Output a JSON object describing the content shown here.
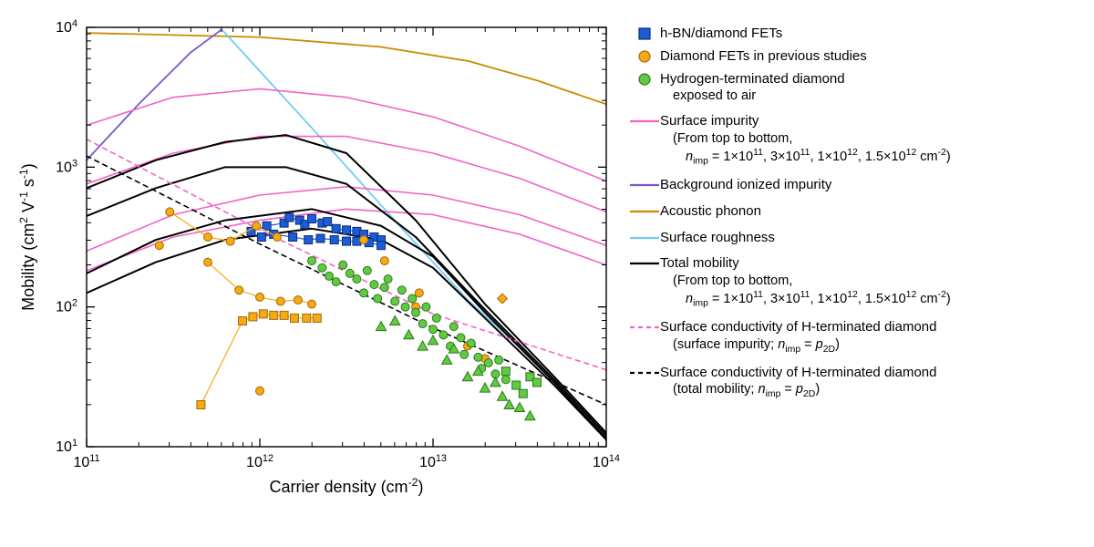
{
  "chart": {
    "type": "scatter+line",
    "background_color": "#ffffff",
    "plot_area_border_color": "#000000",
    "plot_area_border_width": 1.4,
    "tick_color": "#000000",
    "font_color": "#000000",
    "label_fontsize": 18,
    "tick_fontsize": 16,
    "x_axis": {
      "label_html": "Carrier density (cm<sup>-2</sup>)",
      "scale": "log",
      "min_exp": 11,
      "max_exp": 14,
      "tick_exps": [
        11,
        12,
        13,
        14
      ],
      "minor_ticks": true,
      "inward_ticks": true
    },
    "y_axis": {
      "label_html": "Mobility (cm<sup>2</sup> V<sup>-1</sup> s<sup>-1</sup>)",
      "scale": "log",
      "min_exp": 1,
      "max_exp": 4,
      "tick_exps": [
        1,
        2,
        3,
        4
      ],
      "minor_ticks": true,
      "inward_ticks": true
    },
    "lines": {
      "acoustic_phonon": {
        "color": "#c98b00",
        "width": 1.8,
        "points": [
          [
            11,
            3.96
          ],
          [
            12,
            3.93
          ],
          [
            12.7,
            3.86
          ],
          [
            13.2,
            3.76
          ],
          [
            13.6,
            3.62
          ],
          [
            14,
            3.45
          ]
        ]
      },
      "background_ionized": {
        "color": "#7b57c6",
        "width": 1.8,
        "points": [
          [
            11,
            3.05
          ],
          [
            11.3,
            3.45
          ],
          [
            11.6,
            3.82
          ],
          [
            11.78,
            3.985
          ]
        ]
      },
      "surface_roughness": {
        "color": "#6fcdf2",
        "width": 1.8,
        "points": [
          [
            11.78,
            3.985
          ],
          [
            12.3,
            3.28
          ],
          [
            12.8,
            2.59
          ],
          [
            13.2,
            2.05
          ],
          [
            13.6,
            1.6
          ],
          [
            14,
            1.09
          ]
        ]
      },
      "surface_impurity": [
        {
          "color": "#f263c8",
          "width": 1.6,
          "points": [
            [
              11,
              3.3
            ],
            [
              11.5,
              3.5
            ],
            [
              12,
              3.56
            ],
            [
              12.5,
              3.5
            ],
            [
              13,
              3.36
            ],
            [
              13.5,
              3.15
            ],
            [
              14,
              2.9
            ]
          ]
        },
        {
          "color": "#f263c8",
          "width": 1.6,
          "points": [
            [
              11,
              2.88
            ],
            [
              11.5,
              3.1
            ],
            [
              12,
              3.22
            ],
            [
              12.5,
              3.22
            ],
            [
              13,
              3.1
            ],
            [
              13.5,
              2.92
            ],
            [
              14,
              2.68
            ]
          ]
        },
        {
          "color": "#f263c8",
          "width": 1.6,
          "points": [
            [
              11,
              2.4
            ],
            [
              11.5,
              2.66
            ],
            [
              12,
              2.8
            ],
            [
              12.5,
              2.86
            ],
            [
              13,
              2.8
            ],
            [
              13.5,
              2.66
            ],
            [
              14,
              2.44
            ]
          ]
        },
        {
          "color": "#f263c8",
          "width": 1.6,
          "points": [
            [
              11,
              2.26
            ],
            [
              11.5,
              2.5
            ],
            [
              12,
              2.62
            ],
            [
              12.5,
              2.7
            ],
            [
              13,
              2.66
            ],
            [
              13.5,
              2.52
            ],
            [
              14,
              2.3
            ]
          ]
        }
      ],
      "total_mobility": [
        {
          "color": "#000000",
          "width": 2.0,
          "points": [
            [
              11,
              2.85
            ],
            [
              11.4,
              3.05
            ],
            [
              11.8,
              3.18
            ],
            [
              12.15,
              3.23
            ],
            [
              12.5,
              3.1
            ],
            [
              12.9,
              2.62
            ],
            [
              13.3,
              2.02
            ],
            [
              13.7,
              1.5
            ],
            [
              14,
              1.1
            ]
          ]
        },
        {
          "color": "#000000",
          "width": 2.0,
          "points": [
            [
              11,
              2.65
            ],
            [
              11.4,
              2.85
            ],
            [
              11.8,
              3.0
            ],
            [
              12.15,
              3.0
            ],
            [
              12.5,
              2.88
            ],
            [
              12.9,
              2.5
            ],
            [
              13.3,
              1.98
            ],
            [
              13.7,
              1.48
            ],
            [
              14,
              1.08
            ]
          ]
        },
        {
          "color": "#000000",
          "width": 2.0,
          "points": [
            [
              11,
              2.24
            ],
            [
              11.4,
              2.48
            ],
            [
              11.8,
              2.62
            ],
            [
              12.3,
              2.7
            ],
            [
              12.7,
              2.58
            ],
            [
              13.0,
              2.36
            ],
            [
              13.3,
              1.96
            ],
            [
              13.7,
              1.46
            ],
            [
              14,
              1.06
            ]
          ]
        },
        {
          "color": "#000000",
          "width": 2.0,
          "points": [
            [
              11,
              2.1
            ],
            [
              11.4,
              2.32
            ],
            [
              11.8,
              2.48
            ],
            [
              12.3,
              2.56
            ],
            [
              12.7,
              2.48
            ],
            [
              13.0,
              2.28
            ],
            [
              13.3,
              1.92
            ],
            [
              13.7,
              1.44
            ],
            [
              14,
              1.05
            ]
          ]
        }
      ],
      "surface_cond_pink_dashed": {
        "color": "#f263c8",
        "width": 1.6,
        "dash": "5,5",
        "points": [
          [
            11,
            3.2
          ],
          [
            12,
            2.55
          ],
          [
            13,
            1.95
          ],
          [
            14,
            1.55
          ]
        ]
      },
      "surface_cond_black_dashed": {
        "color": "#000000",
        "width": 1.6,
        "dash": "5,5",
        "points": [
          [
            11,
            3.08
          ],
          [
            12,
            2.45
          ],
          [
            13,
            1.85
          ],
          [
            14,
            1.3
          ]
        ]
      }
    },
    "scatter": {
      "hbn_diamond": {
        "marker": "square",
        "fill_color": "#1e5bd6",
        "stroke_color": "#0a2f78",
        "size": 9,
        "connect_color": "#1e5bd6",
        "points": [
          [
            11.95,
            2.54
          ],
          [
            12.04,
            2.58
          ],
          [
            12.14,
            2.6
          ],
          [
            12.17,
            2.64
          ],
          [
            12.23,
            2.62
          ],
          [
            12.26,
            2.59
          ],
          [
            12.3,
            2.63
          ],
          [
            12.36,
            2.6
          ],
          [
            12.39,
            2.61
          ],
          [
            12.44,
            2.56
          ],
          [
            12.5,
            2.55
          ],
          [
            12.56,
            2.54
          ],
          [
            12.6,
            2.52
          ],
          [
            12.66,
            2.5
          ],
          [
            12.7,
            2.48
          ],
          [
            12.01,
            2.5
          ],
          [
            12.08,
            2.52
          ],
          [
            12.19,
            2.5
          ],
          [
            12.28,
            2.48
          ],
          [
            12.35,
            2.49
          ],
          [
            12.43,
            2.48
          ],
          [
            12.5,
            2.47
          ],
          [
            12.56,
            2.47
          ],
          [
            12.63,
            2.46
          ],
          [
            12.7,
            2.44
          ]
        ]
      },
      "diamond_prev": {
        "marker": "mixed",
        "fill_color": "#f4a915",
        "stroke_color": "#a66a00",
        "size": 9,
        "connect_color": "#f4a915",
        "series": [
          {
            "marker": "circle",
            "connect": true,
            "points": [
              [
                11.48,
                2.68
              ],
              [
                11.7,
                2.5
              ],
              [
                11.83,
                2.47
              ],
              [
                11.98,
                2.58
              ],
              [
                12.1,
                2.5
              ]
            ]
          },
          {
            "marker": "circle",
            "connect": true,
            "points": [
              [
                11.7,
                2.32
              ],
              [
                11.88,
                2.12
              ],
              [
                12.0,
                2.07
              ],
              [
                12.12,
                2.04
              ],
              [
                12.22,
                2.05
              ],
              [
                12.3,
                2.02
              ]
            ]
          },
          {
            "marker": "square",
            "connect": true,
            "points": [
              [
                11.66,
                1.3
              ],
              [
                11.9,
                1.9
              ],
              [
                11.96,
                1.93
              ],
              [
                12.02,
                1.95
              ],
              [
                12.08,
                1.94
              ],
              [
                12.14,
                1.94
              ],
              [
                12.2,
                1.92
              ],
              [
                12.27,
                1.92
              ],
              [
                12.33,
                1.92
              ]
            ]
          },
          {
            "marker": "circle",
            "connect": false,
            "points": [
              [
                11.42,
                2.44
              ],
              [
                12.6,
                2.48
              ],
              [
                12.72,
                2.33
              ],
              [
                12.92,
                2.1
              ],
              [
                12.9,
                2.0
              ],
              [
                13.2,
                1.72
              ],
              [
                13.3,
                1.63
              ],
              [
                12.0,
                1.4
              ]
            ]
          },
          {
            "marker": "diamond",
            "connect": false,
            "points": [
              [
                13.4,
                2.06
              ]
            ]
          }
        ]
      },
      "h_term_air": {
        "marker": "mixed",
        "fill_color": "#62c944",
        "stroke_color": "#2b7a18",
        "size": 9,
        "series": [
          {
            "marker": "circle",
            "points": [
              [
                12.3,
                2.33
              ],
              [
                12.36,
                2.28
              ],
              [
                12.4,
                2.22
              ],
              [
                12.44,
                2.18
              ],
              [
                12.48,
                2.3
              ],
              [
                12.52,
                2.24
              ],
              [
                12.56,
                2.2
              ],
              [
                12.6,
                2.1
              ],
              [
                12.62,
                2.26
              ],
              [
                12.66,
                2.16
              ],
              [
                12.68,
                2.06
              ],
              [
                12.72,
                2.14
              ],
              [
                12.74,
                2.2
              ],
              [
                12.78,
                2.04
              ],
              [
                12.82,
                2.12
              ],
              [
                12.84,
                2.0
              ],
              [
                12.88,
                2.06
              ],
              [
                12.9,
                1.96
              ],
              [
                12.94,
                1.88
              ],
              [
                12.96,
                2.0
              ],
              [
                13.0,
                1.84
              ],
              [
                13.02,
                1.92
              ],
              [
                13.06,
                1.8
              ],
              [
                13.1,
                1.72
              ],
              [
                13.12,
                1.86
              ],
              [
                13.16,
                1.78
              ],
              [
                13.18,
                1.66
              ],
              [
                13.22,
                1.74
              ],
              [
                13.26,
                1.64
              ],
              [
                13.28,
                1.56
              ],
              [
                13.32,
                1.6
              ],
              [
                13.36,
                1.52
              ],
              [
                13.38,
                1.62
              ],
              [
                13.42,
                1.48
              ]
            ]
          },
          {
            "marker": "triangle",
            "points": [
              [
                12.7,
                1.86
              ],
              [
                12.78,
                1.9
              ],
              [
                12.86,
                1.8
              ],
              [
                12.94,
                1.72
              ],
              [
                13.0,
                1.76
              ],
              [
                13.08,
                1.62
              ],
              [
                13.12,
                1.7
              ],
              [
                13.2,
                1.5
              ],
              [
                13.26,
                1.54
              ],
              [
                13.3,
                1.42
              ],
              [
                13.36,
                1.46
              ],
              [
                13.4,
                1.36
              ],
              [
                13.44,
                1.3
              ],
              [
                13.5,
                1.28
              ],
              [
                13.56,
                1.22
              ]
            ]
          },
          {
            "marker": "square",
            "points": [
              [
                13.42,
                1.54
              ],
              [
                13.48,
                1.44
              ],
              [
                13.52,
                1.38
              ],
              [
                13.56,
                1.5
              ],
              [
                13.6,
                1.46
              ]
            ]
          }
        ]
      }
    }
  },
  "legend": {
    "fontsize": 15,
    "items": [
      {
        "type": "marker",
        "shape": "square",
        "fill": "#1e5bd6",
        "stroke": "#0a2f78",
        "label": "h-BN/diamond FETs"
      },
      {
        "type": "marker",
        "shape": "circle",
        "fill": "#f4a915",
        "stroke": "#a66a00",
        "label": "Diamond FETs in previous studies"
      },
      {
        "type": "marker",
        "shape": "circle",
        "fill": "#62c944",
        "stroke": "#2b7a18",
        "label": "Hydrogen-terminated diamond",
        "sub": "exposed to air"
      },
      {
        "type": "line",
        "color": "#f263c8",
        "label": "Surface impurity",
        "sub": "(From top to bottom,",
        "sub2": "nimp = 1×10^11, 3×10^11, 1×10^12, 1.5×10^12 cm^-2)"
      },
      {
        "type": "line",
        "color": "#7b57c6",
        "label": "Background ionized impurity"
      },
      {
        "type": "line",
        "color": "#c98b00",
        "label": "Acoustic phonon"
      },
      {
        "type": "line",
        "color": "#6fcdf2",
        "label": "Surface roughness"
      },
      {
        "type": "line",
        "color": "#000000",
        "label": "Total mobility",
        "sub": "(From top to bottom,",
        "sub2": "nimp = 1×10^11, 3×10^11, 1×10^12, 1.5×10^12 cm^-2)"
      },
      {
        "type": "line",
        "color": "#f263c8",
        "dash": "5,4",
        "label": "Surface conductivity of H-terminated diamond",
        "sub": "(surface impurity; nimp = p2D)"
      },
      {
        "type": "line",
        "color": "#000000",
        "dash": "5,4",
        "label": "Surface conductivity of H-terminated diamond",
        "sub": "(total mobility; nimp = p2D)"
      }
    ]
  }
}
